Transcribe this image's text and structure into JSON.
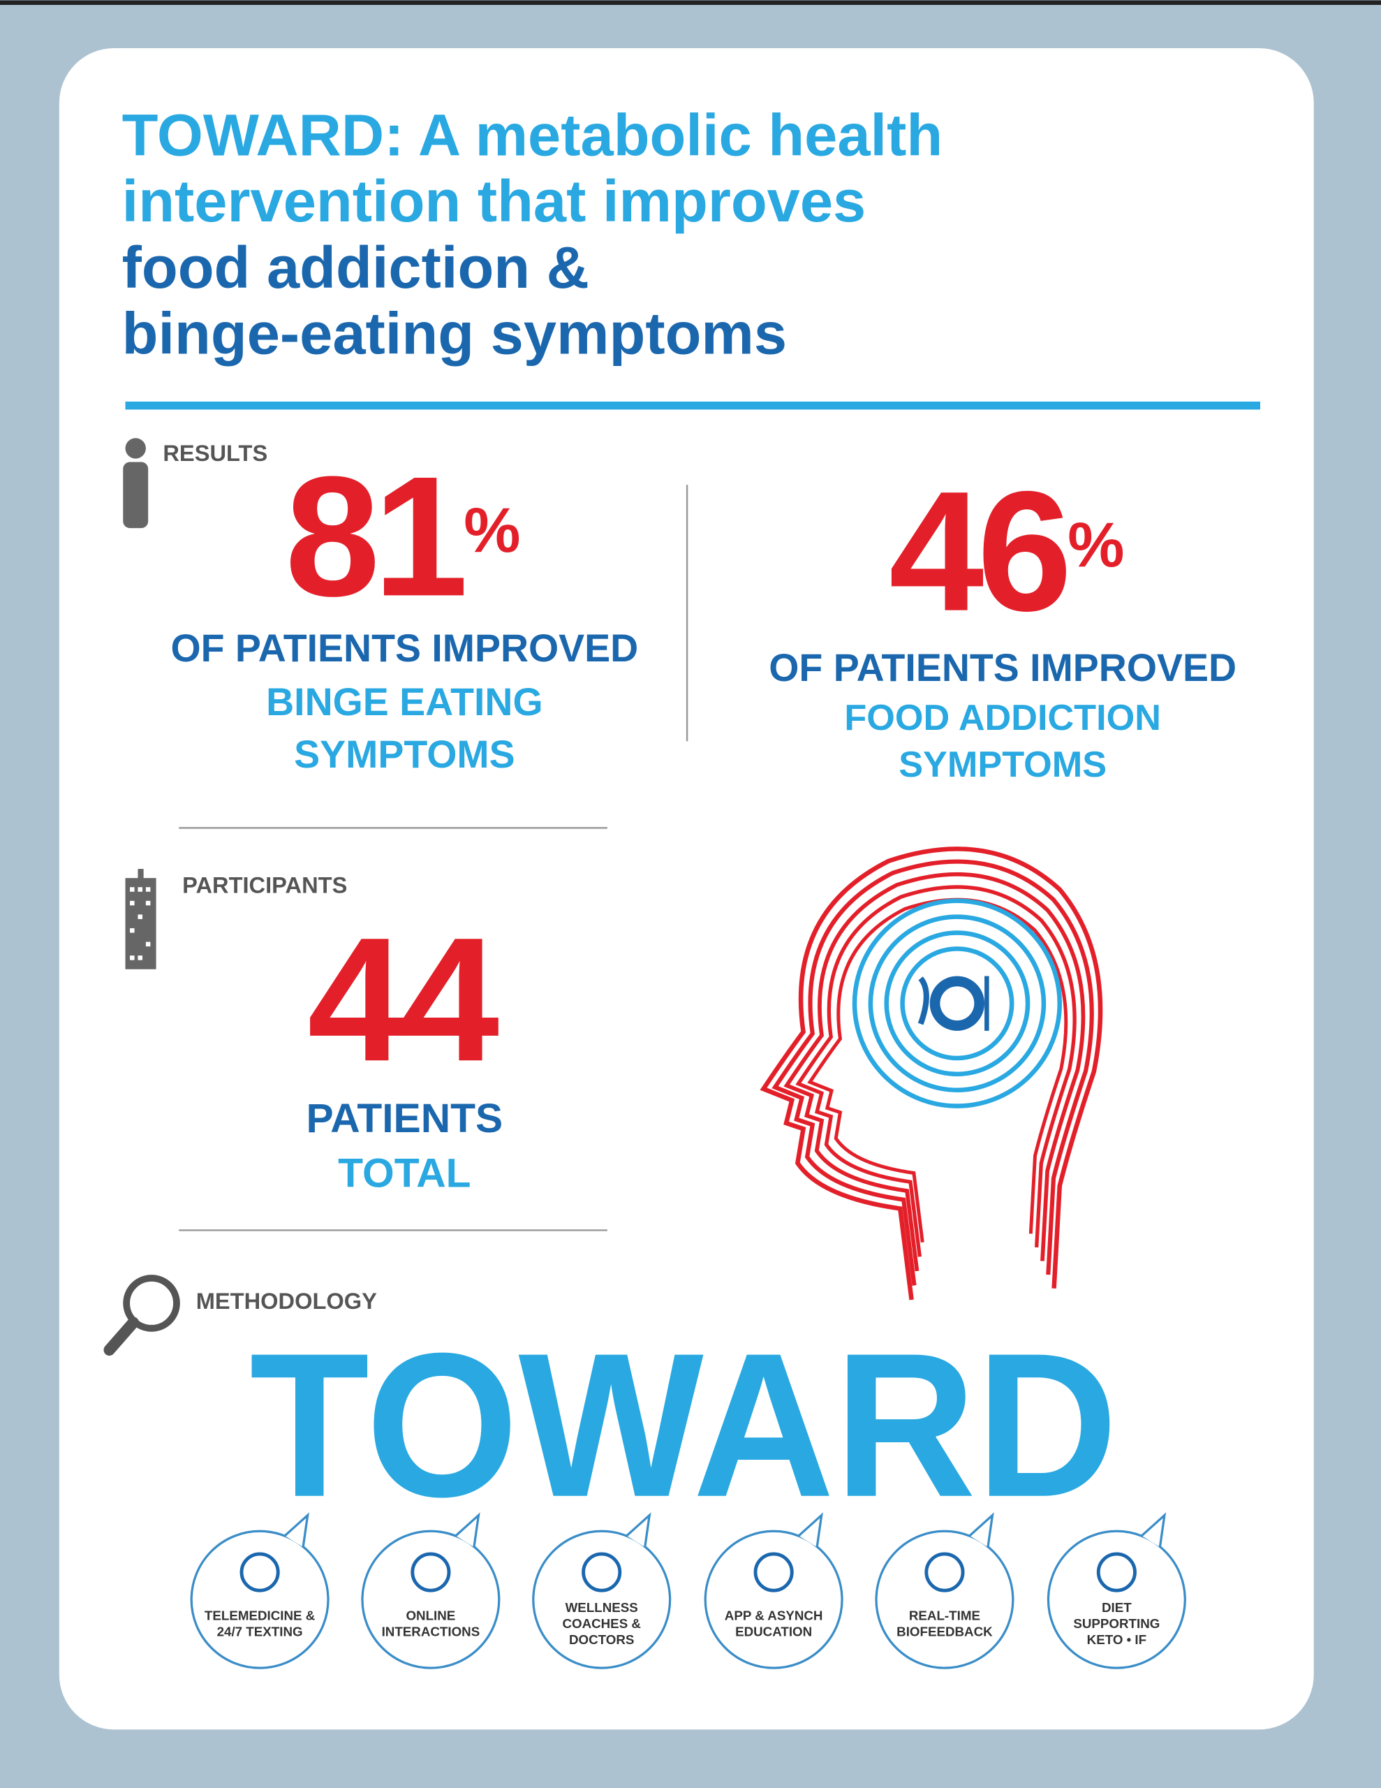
{
  "header": {
    "highlight_lines": [
      "TOWARD: A metabolic health",
      "intervention that improves"
    ],
    "lines": [
      "food addiction &",
      "binge-eating symptoms"
    ],
    "highlight_color": "#29a8e1",
    "color": "#1b67ae"
  },
  "results": {
    "label": "RESULTS",
    "stats": [
      {
        "value": 81,
        "unit": "%",
        "lead": "OF PATIENTS IMPROVED",
        "lines": [
          "BINGE EATING",
          "SYMPTOMS"
        ]
      },
      {
        "value": 46,
        "unit": "%",
        "lead": "OF PATIENTS IMPROVED",
        "lines": [
          "FOOD ADDICTION",
          "SYMPTOMS"
        ]
      }
    ]
  },
  "participants": {
    "label": "PARTICIPANTS",
    "value": 44,
    "lines": [
      "PATIENTS",
      "TOTAL"
    ]
  },
  "methodology": {
    "label": "METHODOLOGY",
    "name": "TOWARD",
    "components": [
      [
        "TELEMEDICINE &",
        "24/7 TEXTING"
      ],
      [
        "ONLINE",
        "INTERACTIONS"
      ],
      [
        "WELLNESS",
        "COACHES &",
        "DOCTORS"
      ],
      [
        "APP & ASYNCH",
        "EDUCATION"
      ],
      [
        "REAL-TIME",
        "BIOFEEDBACK"
      ],
      [
        "DIET",
        "SUPPORTING",
        "KETO • IF"
      ]
    ]
  }
}
